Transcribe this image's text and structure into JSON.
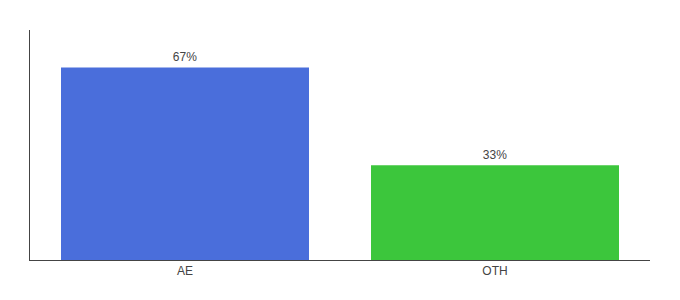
{
  "chart_data": {
    "type": "bar",
    "categories": [
      "AE",
      "OTH"
    ],
    "values": [
      67,
      33
    ],
    "value_labels": [
      "67%",
      "33%"
    ],
    "data_labels": true,
    "colors": [
      "#4a6edb",
      "#3cc63c"
    ],
    "ylim": [
      0,
      80
    ],
    "tick_labels": "x",
    "grid": false
  }
}
